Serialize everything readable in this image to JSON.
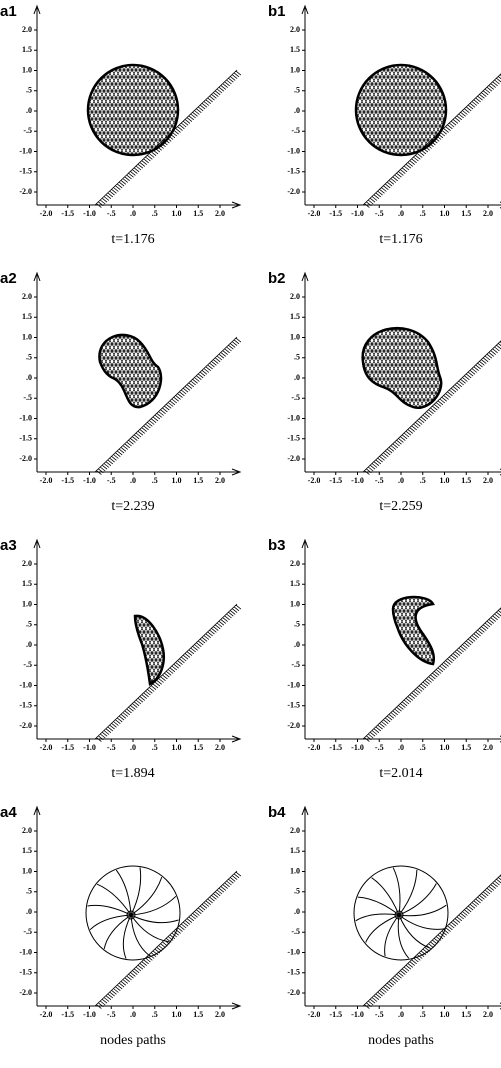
{
  "panels": [
    {
      "label": "a1",
      "caption": "t=1.176"
    },
    {
      "label": "b1",
      "caption": "t=1.176"
    },
    {
      "label": "a2",
      "caption": "t=2.239"
    },
    {
      "label": "b2",
      "caption": "t=2.259"
    },
    {
      "label": "a3",
      "caption": "t=1.894"
    },
    {
      "label": "b3",
      "caption": "t=2.014"
    },
    {
      "label": "a4",
      "caption": "nodes paths"
    },
    {
      "label": "b4",
      "caption": "nodes paths"
    }
  ],
  "xticks": [
    {
      "value": -2,
      "label": "-2.0"
    },
    {
      "value": -1.5,
      "label": "-1.5"
    },
    {
      "value": -1,
      "label": "-1.0"
    },
    {
      "value": -0.5,
      "label": "-.5"
    },
    {
      "value": 0,
      "label": ".0"
    },
    {
      "value": 0.5,
      "label": ".5"
    },
    {
      "value": 1,
      "label": "1.0"
    },
    {
      "value": 1.5,
      "label": "1.5"
    },
    {
      "value": 2,
      "label": "2.0"
    }
  ],
  "yticks": [
    {
      "value": 2,
      "label": "2.0"
    },
    {
      "value": 1.5,
      "label": "1.5"
    },
    {
      "value": 1,
      "label": "1.0"
    },
    {
      "value": 0.5,
      "label": ".5"
    },
    {
      "value": 0,
      "label": ".0"
    },
    {
      "value": -0.5,
      "label": "-.5"
    },
    {
      "value": -1,
      "label": "-1.0"
    },
    {
      "value": -1.5,
      "label": "-1.5"
    },
    {
      "value": -2,
      "label": "-2.0"
    }
  ]
}
